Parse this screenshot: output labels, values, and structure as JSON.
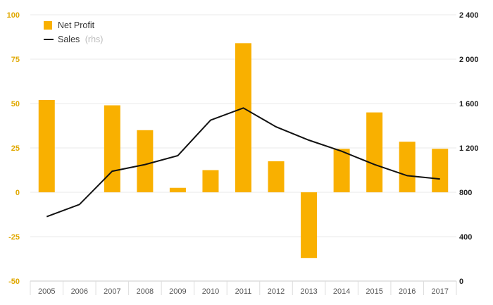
{
  "chart_data": {
    "type": "bar+line",
    "categories": [
      "2005",
      "2006",
      "2007",
      "2008",
      "2009",
      "2010",
      "2011",
      "2012",
      "2013",
      "2014",
      "2015",
      "2016",
      "2017"
    ],
    "series": [
      {
        "name": "Net Profit",
        "type": "bar",
        "axis": "left",
        "color": "#f9b000",
        "values": [
          52,
          null,
          49,
          35,
          2.5,
          12.5,
          84,
          17.5,
          -37,
          24.5,
          45,
          28.5,
          24.5
        ]
      },
      {
        "name": "Sales",
        "name_suffix": "(rhs)",
        "type": "line",
        "axis": "right",
        "color": "#111111",
        "values": [
          580,
          690,
          990,
          1050,
          1130,
          1450,
          1560,
          1390,
          1270,
          1170,
          1050,
          950,
          920
        ]
      }
    ],
    "y_left": {
      "min": -50,
      "max": 100,
      "ticks": [
        100,
        75,
        50,
        25,
        0,
        -25,
        -50
      ],
      "tick_labels": [
        "100",
        "75",
        "50",
        "25",
        "0",
        "-25",
        "-50"
      ],
      "color": "#e0a800"
    },
    "y_right": {
      "min": 0,
      "max": 2400,
      "ticks": [
        2400,
        2000,
        1600,
        1200,
        800,
        400,
        0
      ],
      "tick_labels": [
        "2 400",
        "2 000",
        "1 600",
        "1 200",
        "800",
        "400",
        "0"
      ]
    },
    "grid": true,
    "legend_position": "top-left"
  }
}
